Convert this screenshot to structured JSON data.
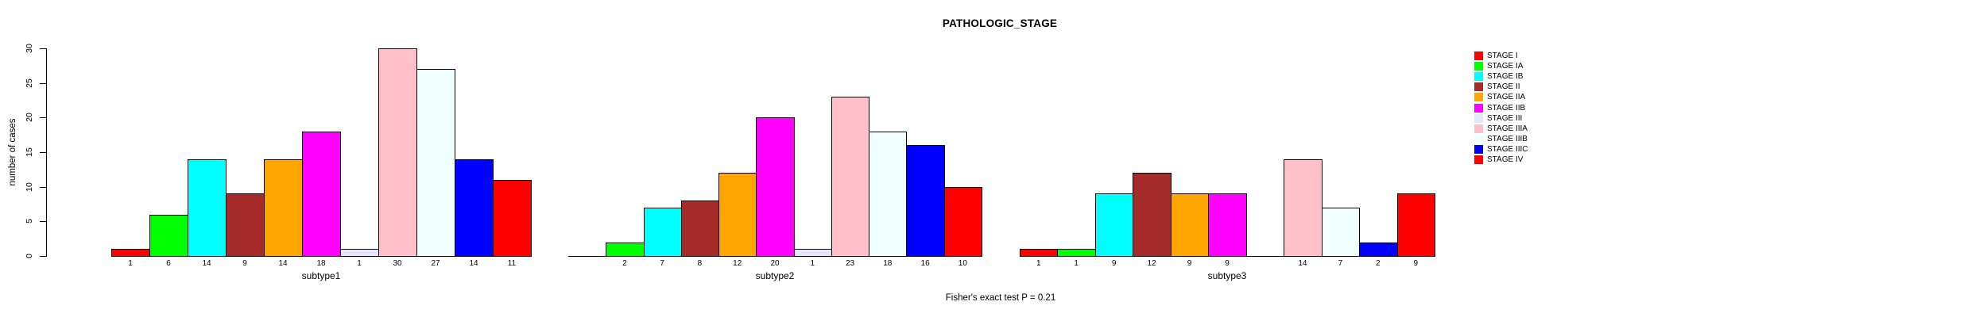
{
  "chart_data": {
    "type": "bar",
    "title": "PATHOLOGIC_STAGE",
    "ylabel": "number of cases",
    "caption": "Fisher's exact test P = 0.21",
    "ylim": [
      0,
      30
    ],
    "yticks": [
      0,
      5,
      10,
      15,
      20,
      25,
      30
    ],
    "grid": false,
    "legend_position": "right",
    "bar_value_labels_shown": true,
    "zero_value_slots": "empty slot, no bar, no label",
    "stages": [
      {
        "name": "STAGE I",
        "color": "#FF0000"
      },
      {
        "name": "STAGE IA",
        "color": "#00FF00"
      },
      {
        "name": "STAGE IB",
        "color": "#00FFFF"
      },
      {
        "name": "STAGE II",
        "color": "#A52A2A"
      },
      {
        "name": "STAGE IIA",
        "color": "#FFA500"
      },
      {
        "name": "STAGE IIB",
        "color": "#FF00FF"
      },
      {
        "name": "STAGE III",
        "color": "#E6E6FA"
      },
      {
        "name": "STAGE IIIA",
        "color": "#FFC0CB"
      },
      {
        "name": "STAGE IIIB",
        "color": "#F0FFFF"
      },
      {
        "name": "STAGE IIIC",
        "color": "#0000FF"
      },
      {
        "name": "STAGE IV",
        "color": "#FF0000"
      }
    ],
    "categories": [
      "subtype1",
      "subtype2",
      "subtype3"
    ],
    "series_note": "values are counts per stage, in stage order, per subtype group",
    "groups": [
      {
        "label": "subtype1",
        "values": [
          1,
          6,
          14,
          9,
          14,
          18,
          1,
          30,
          27,
          14,
          11
        ]
      },
      {
        "label": "subtype2",
        "values": [
          0,
          2,
          7,
          8,
          12,
          20,
          1,
          23,
          18,
          16,
          10
        ]
      },
      {
        "label": "subtype3",
        "values": [
          1,
          1,
          9,
          12,
          9,
          9,
          0,
          14,
          7,
          2,
          9
        ]
      }
    ]
  }
}
